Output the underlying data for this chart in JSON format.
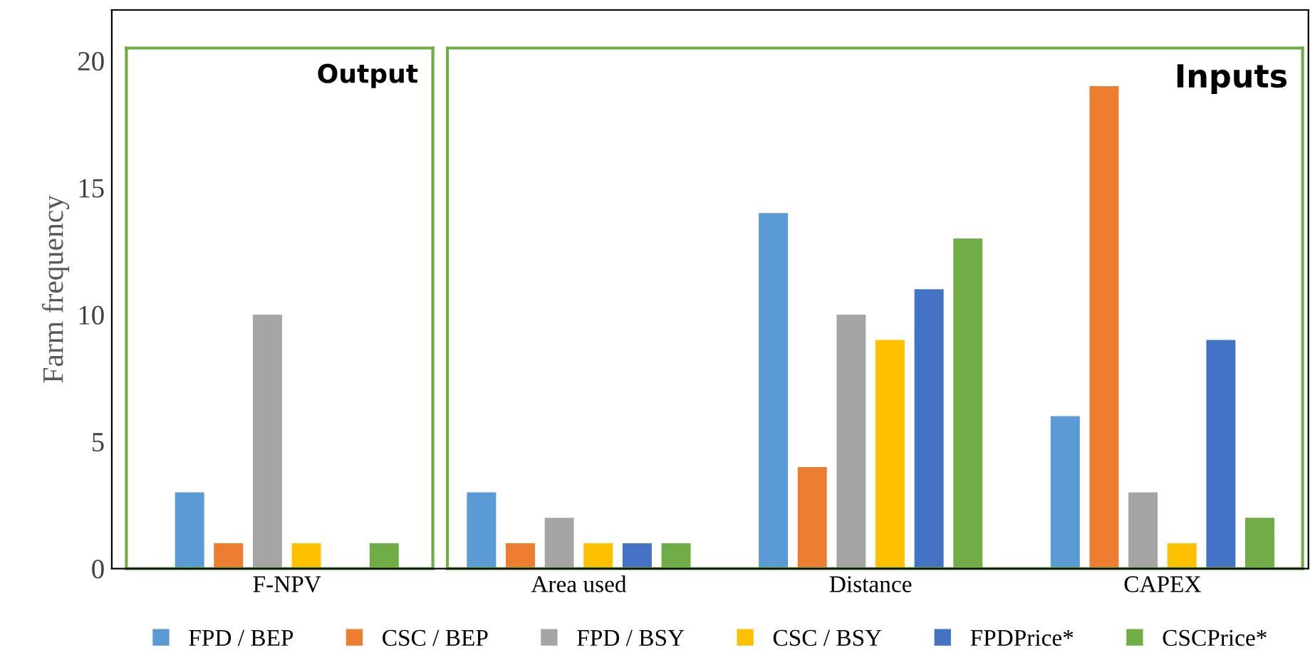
{
  "chart_data": {
    "type": "bar",
    "ylabel": "Farm frequency",
    "categories": [
      "F-NPV",
      "Area used",
      "Distance",
      "CAPEX"
    ],
    "series": [
      {
        "name": "FPD / BEP",
        "color": "#5b9bd5",
        "values": [
          3,
          3,
          14,
          6
        ]
      },
      {
        "name": "CSC / BEP",
        "color": "#ed7d31",
        "values": [
          1,
          1,
          4,
          19
        ]
      },
      {
        "name": "FPD / BSY",
        "color": "#a5a5a5",
        "values": [
          10,
          2,
          10,
          3
        ]
      },
      {
        "name": "CSC / BSY",
        "color": "#ffc000",
        "values": [
          1,
          1,
          9,
          1
        ]
      },
      {
        "name": "FPDPrice*",
        "color": "#4472c4",
        "values": [
          0,
          1,
          11,
          9
        ]
      },
      {
        "name": "CSCPrice*",
        "color": "#70ad47",
        "values": [
          1,
          1,
          13,
          2
        ]
      }
    ],
    "annotations": [
      "Output",
      "Inputs"
    ],
    "ylim": [
      0,
      22
    ],
    "yticks": [
      0,
      5,
      10,
      15,
      20
    ],
    "grid": false,
    "legend": "bottom"
  }
}
